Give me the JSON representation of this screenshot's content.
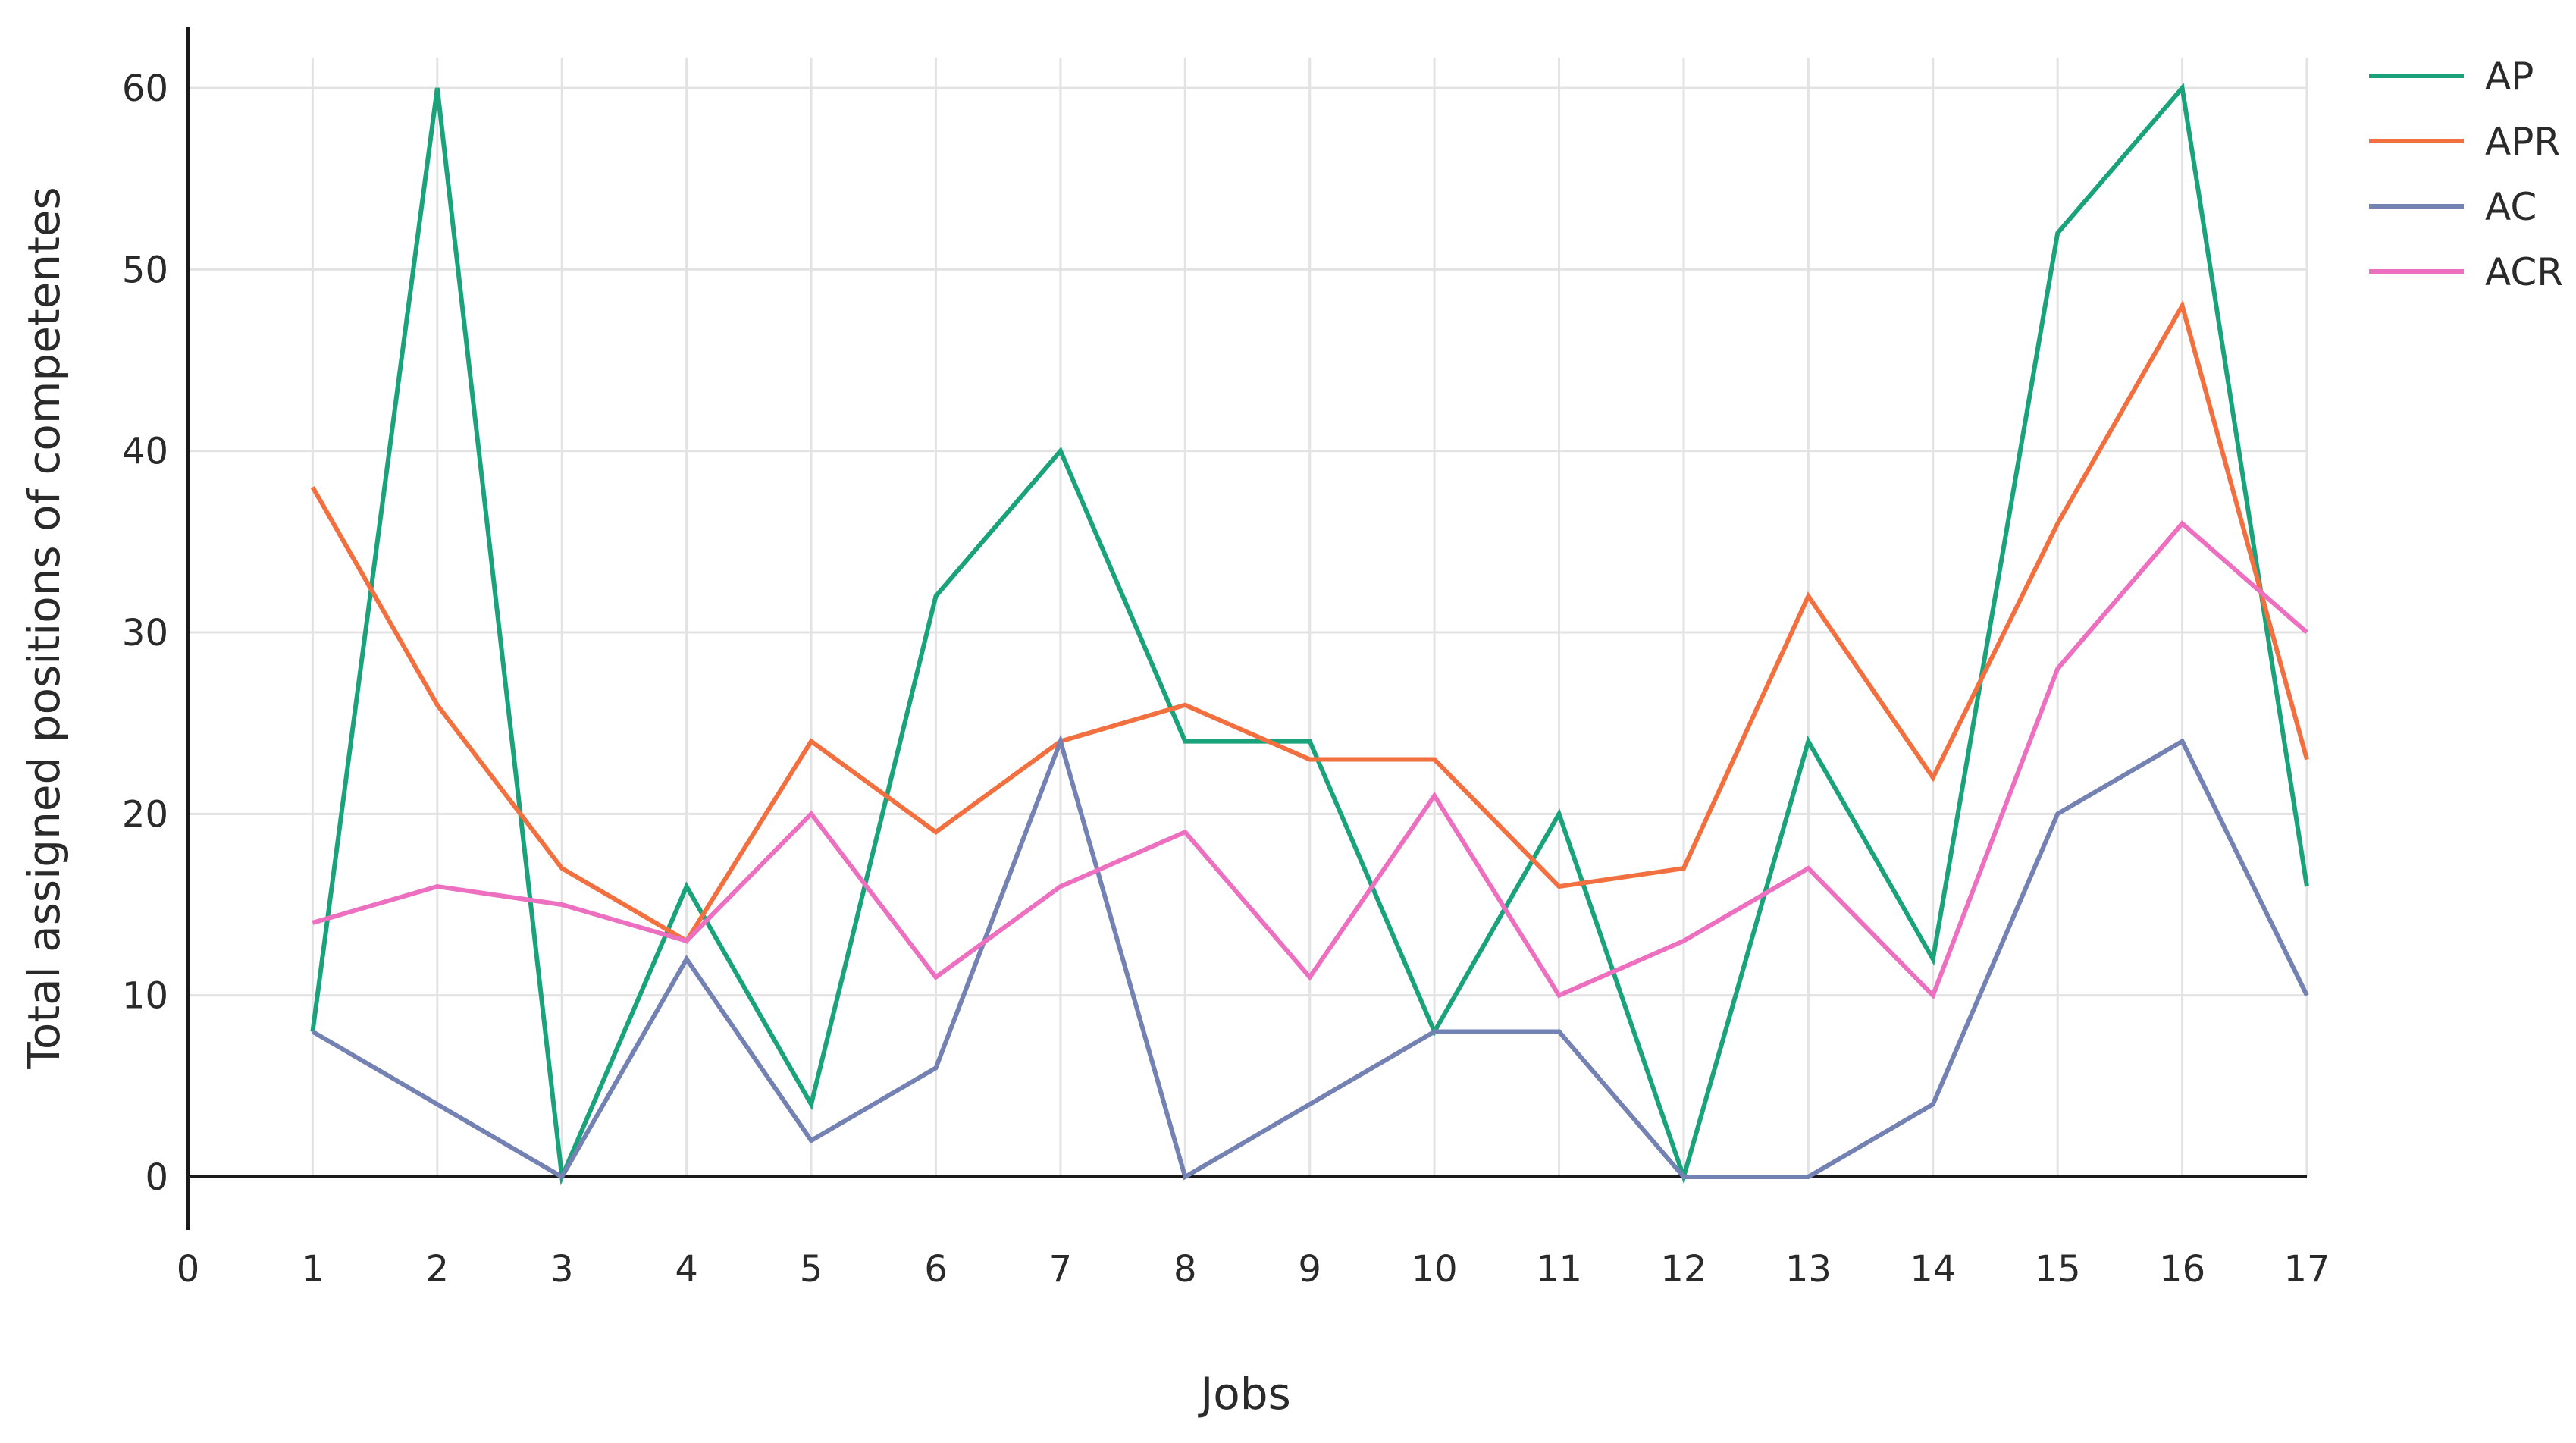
{
  "chart_data": {
    "type": "line",
    "title": "",
    "xlabel": "Jobs",
    "ylabel": "Total assigned positions of competentes",
    "xlim": [
      0,
      17
    ],
    "ylim": [
      0,
      60
    ],
    "x_ticks": [
      0,
      1,
      2,
      3,
      4,
      5,
      6,
      7,
      8,
      9,
      10,
      11,
      12,
      13,
      14,
      15,
      16,
      17
    ],
    "y_ticks": [
      0,
      10,
      20,
      30,
      40,
      50,
      60
    ],
    "x_tick_labels": [
      "0",
      "1",
      "2",
      "3",
      "4",
      "5",
      "6",
      "7",
      "8",
      "9",
      "10",
      "11",
      "12",
      "13",
      "14",
      "15",
      "16",
      "17"
    ],
    "y_tick_labels": [
      "0",
      "10",
      "20",
      "30",
      "40",
      "50",
      "60"
    ],
    "grid": true,
    "legend_position": "top-right",
    "x": [
      1,
      2,
      3,
      4,
      5,
      6,
      7,
      8,
      9,
      10,
      11,
      12,
      13,
      14,
      15,
      16,
      17
    ],
    "series": [
      {
        "name": "AP",
        "color": "#1aa37a",
        "values": [
          8,
          60,
          0,
          16,
          4,
          32,
          40,
          24,
          24,
          8,
          20,
          0,
          24,
          12,
          52,
          60,
          16
        ]
      },
      {
        "name": "APR",
        "color": "#f2703f",
        "values": [
          38,
          26,
          17,
          13,
          24,
          19,
          24,
          26,
          23,
          23,
          16,
          17,
          32,
          22,
          36,
          48,
          23
        ]
      },
      {
        "name": "AC",
        "color": "#7381b3",
        "values": [
          8,
          4,
          0,
          12,
          2,
          6,
          24,
          0,
          4,
          8,
          8,
          0,
          0,
          4,
          20,
          24,
          10
        ]
      },
      {
        "name": "ACR",
        "color": "#ec6fc0",
        "values": [
          14,
          16,
          15,
          13,
          20,
          11,
          16,
          19,
          11,
          21,
          10,
          13,
          17,
          10,
          28,
          36,
          30
        ]
      }
    ]
  }
}
